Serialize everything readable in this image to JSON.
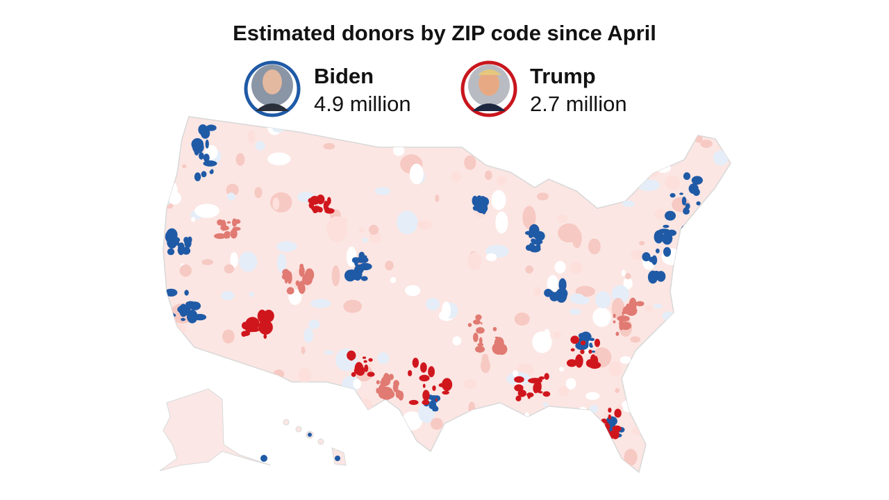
{
  "title": "Estimated donors by ZIP code since April",
  "candidates": [
    {
      "name": "Biden",
      "total": "4.9 million"
    },
    {
      "name": "Trump",
      "total": "2.7 million"
    }
  ]
}
